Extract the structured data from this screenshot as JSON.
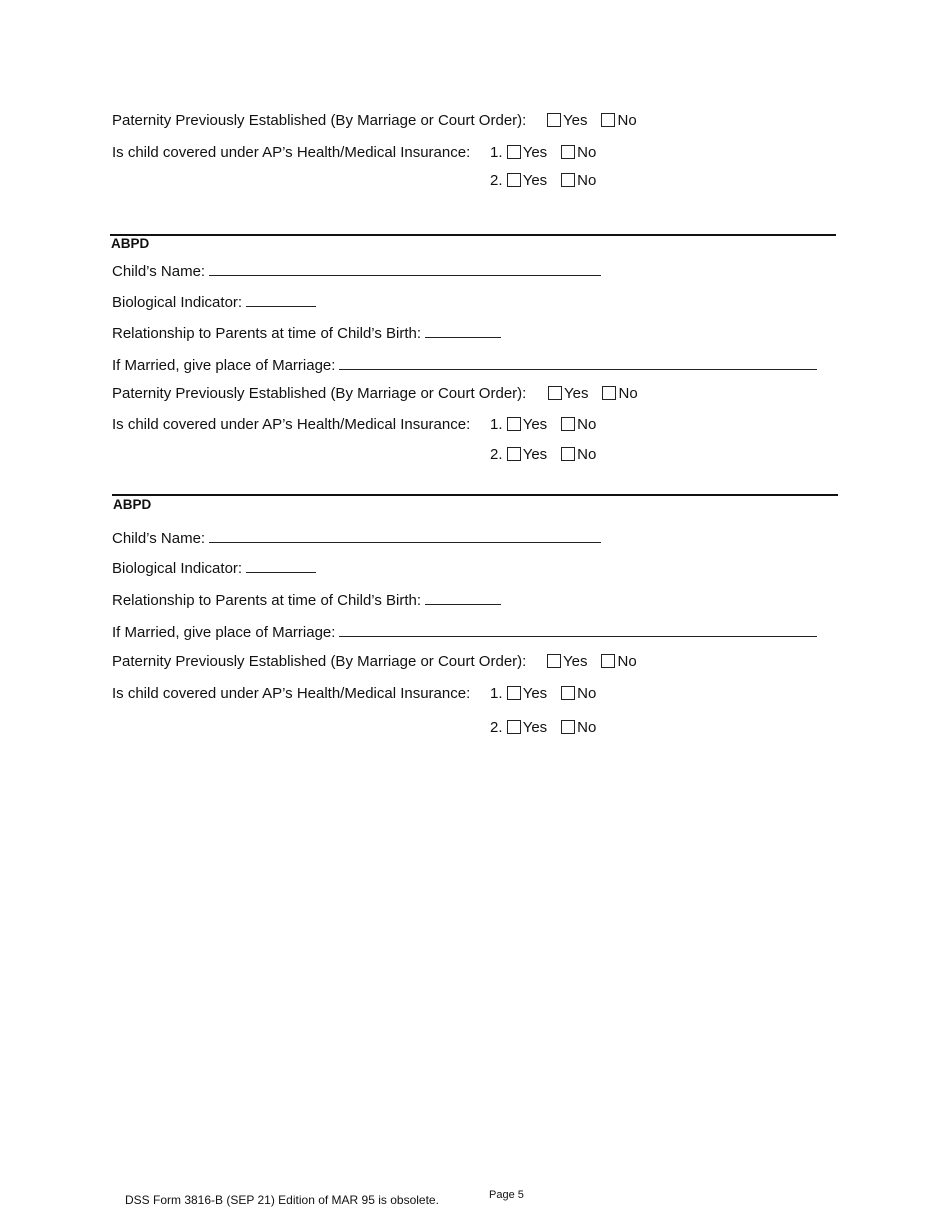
{
  "top": {
    "paternity_label": "Paternity Previously Established (By Marriage or Court Order):",
    "insurance_label": "Is child covered under AP’s Health/Medical Insurance:",
    "item1": "1.",
    "item2": "2.",
    "yes": "Yes",
    "no": "No"
  },
  "sections": [
    {
      "header": "ABPD",
      "child_name_label": "Child’s Name:",
      "bio_label": "Biological Indicator:",
      "relationship_label": "Relationship to Parents at time of Child’s Birth:",
      "marriage_label": "If Married, give place of Marriage:",
      "paternity_label": "Paternity Previously Established (By Marriage or Court Order):",
      "insurance_label": "Is child covered under AP’s Health/Medical Insurance:",
      "item1": "1.",
      "item2": "2.",
      "yes": "Yes",
      "no": "No"
    },
    {
      "header": "ABPD",
      "child_name_label": "Child’s Name:",
      "bio_label": "Biological Indicator:",
      "relationship_label": "Relationship to Parents at time of Child’s Birth:",
      "marriage_label": "If Married, give place of Marriage:",
      "paternity_label": "Paternity Previously Established (By Marriage or Court Order):",
      "insurance_label": "Is child covered under AP’s Health/Medical Insurance:",
      "item1": "1.",
      "item2": "2.",
      "yes": "Yes",
      "no": "No"
    }
  ],
  "footer": {
    "form_id": "DSS Form 3816-B (SEP 21)  Edition of MAR 95 is obsolete.",
    "page": "Page 5"
  }
}
